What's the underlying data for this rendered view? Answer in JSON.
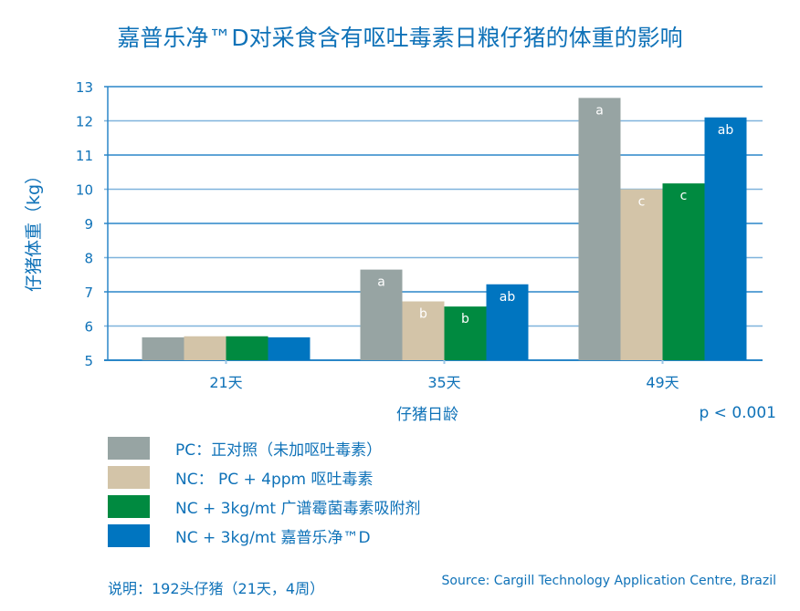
{
  "chart_data": {
    "type": "bar",
    "title": "嘉普乐净™D对采食含有呕吐毒素日粮仔猪的体重的影响",
    "xlabel": "仔猪日龄",
    "ylabel": "仔猪体重（kg）",
    "categories": [
      "21天",
      "35天",
      "49天"
    ],
    "ylim": [
      5,
      13
    ],
    "yticks": [
      5,
      6,
      7,
      8,
      9,
      10,
      11,
      12,
      13
    ],
    "grid": true,
    "legend_placement": "bottom",
    "series": [
      {
        "name": "PC：正对照（未加呕吐毒素）",
        "color": "#97a4a3",
        "values": [
          5.67,
          7.65,
          12.67
        ],
        "labels": [
          "",
          "a",
          "a"
        ]
      },
      {
        "name": "NC： PC + 4ppm 呕吐毒素",
        "color": "#d3c4a8",
        "values": [
          5.7,
          6.72,
          10.0
        ],
        "labels": [
          "",
          "b",
          "c"
        ]
      },
      {
        "name": "NC + 3kg/mt 广谱霉菌毒素吸附剂",
        "color": "#008a40",
        "values": [
          5.7,
          6.57,
          10.17
        ],
        "labels": [
          "",
          "b",
          "c"
        ]
      },
      {
        "name": "NC + 3kg/mt 嘉普乐净™D",
        "color": "#0075c0",
        "values": [
          5.67,
          7.22,
          12.1
        ],
        "labels": [
          "",
          "ab",
          "ab"
        ]
      }
    ],
    "annotations": {
      "p_value": "p < 0.001"
    }
  },
  "footer": {
    "note": "说明：192头仔猪（21天，4周）",
    "source": "Source: Cargill Technology Application Centre, Brazil"
  }
}
